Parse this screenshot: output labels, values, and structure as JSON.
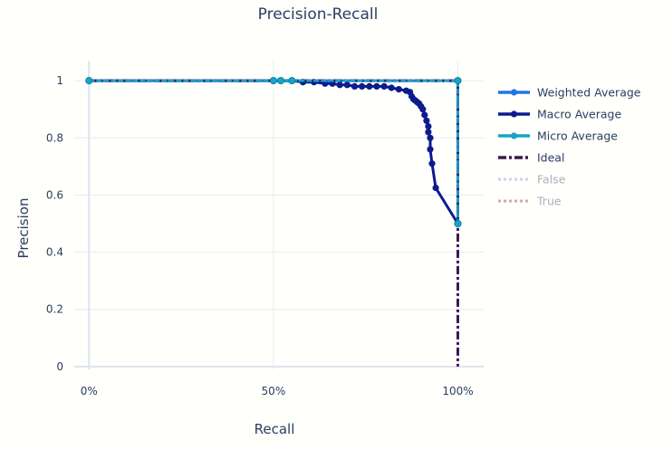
{
  "chart_data": {
    "type": "line",
    "title": "Precision-Recall",
    "xlabel": "Recall",
    "ylabel": "Precision",
    "xlim": [
      -0.04,
      1.07
    ],
    "ylim": [
      -0.01,
      1.07
    ],
    "xticks": [
      0,
      0.5,
      1
    ],
    "xtick_labels": [
      "0%",
      "50%",
      "100%"
    ],
    "yticks": [
      0,
      0.2,
      0.4,
      0.6,
      0.8,
      1
    ],
    "ytick_labels": [
      "0",
      "0.2",
      "0.4",
      "0.6",
      "0.8",
      "1"
    ],
    "grid": true,
    "legend_position": "right",
    "series": [
      {
        "name": "Weighted Average",
        "color": "#1f77e4",
        "style": "solid",
        "markers": true,
        "visible": true,
        "x": [
          0,
          0.5,
          0.52,
          0.55,
          1,
          1
        ],
        "y": [
          1,
          1,
          1,
          1,
          1,
          0.5
        ]
      },
      {
        "name": "Macro Average",
        "color": "#0d1b8f",
        "style": "solid",
        "markers": true,
        "visible": true,
        "x": [
          0,
          0.5,
          0.52,
          0.55,
          0.58,
          0.61,
          0.64,
          0.66,
          0.68,
          0.7,
          0.72,
          0.74,
          0.76,
          0.78,
          0.8,
          0.82,
          0.84,
          0.86,
          0.87,
          0.875,
          0.88,
          0.885,
          0.89,
          0.895,
          0.9,
          0.905,
          0.91,
          0.915,
          0.92,
          0.92,
          0.925,
          0.925,
          0.93,
          0.94,
          1
        ],
        "y": [
          1,
          1,
          1,
          1,
          0.995,
          0.995,
          0.99,
          0.99,
          0.985,
          0.985,
          0.98,
          0.98,
          0.98,
          0.98,
          0.98,
          0.975,
          0.97,
          0.965,
          0.96,
          0.945,
          0.935,
          0.93,
          0.925,
          0.92,
          0.91,
          0.9,
          0.88,
          0.86,
          0.84,
          0.82,
          0.8,
          0.76,
          0.71,
          0.625,
          0.5
        ]
      },
      {
        "name": "Micro Average",
        "color": "#17a3c9",
        "style": "solid",
        "markers": true,
        "visible": true,
        "x": [
          0,
          0.5,
          0.52,
          0.55,
          1,
          1
        ],
        "y": [
          1,
          1,
          1,
          1,
          1,
          0.5
        ]
      },
      {
        "name": "Ideal",
        "color": "#3e1a52",
        "style": "dashdot",
        "markers": false,
        "visible": true,
        "x": [
          0,
          1,
          1
        ],
        "y": [
          1,
          1,
          0
        ]
      },
      {
        "name": "False",
        "color": "#c8b6e6",
        "style": "dot",
        "markers": false,
        "visible": false,
        "x": [],
        "y": []
      },
      {
        "name": "True",
        "color": "#b48593",
        "style": "dot",
        "markers": false,
        "visible": false,
        "x": [],
        "y": []
      }
    ]
  }
}
